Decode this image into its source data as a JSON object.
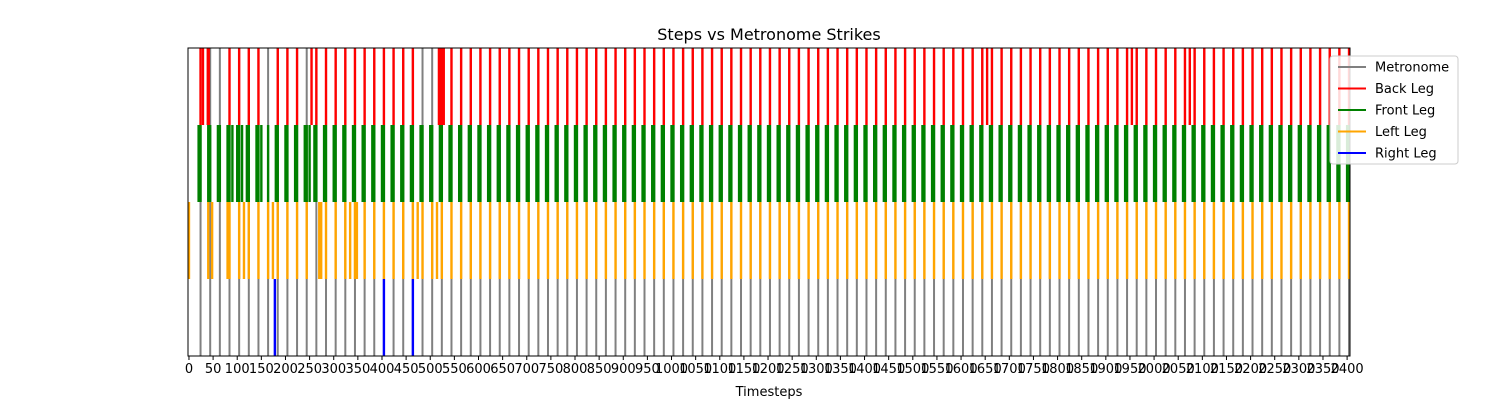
{
  "chart_data": {
    "type": "event-raster",
    "title": "Steps vs Metronome Strikes",
    "xlabel": "Timesteps",
    "ylabel": "",
    "xlim": [
      -2,
      2406
    ],
    "xticks": [
      0,
      50,
      100,
      150,
      200,
      250,
      300,
      350,
      400,
      450,
      500,
      550,
      600,
      650,
      700,
      750,
      800,
      850,
      900,
      950,
      1000,
      1050,
      1100,
      1150,
      1200,
      1250,
      1300,
      1350,
      1400,
      1450,
      1500,
      1550,
      1600,
      1650,
      1700,
      1750,
      1800,
      1850,
      1900,
      1950,
      2000,
      2050,
      2100,
      2150,
      2200,
      2250,
      2300,
      2350,
      2400
    ],
    "grid": false,
    "legend_position": "top-right",
    "series": [
      {
        "name": "Metronome",
        "color": "#808080",
        "row": [
          0,
          4
        ],
        "interval": 20,
        "events": [
          24,
          44,
          64,
          84,
          104,
          124,
          144,
          164,
          184,
          204,
          224,
          244,
          264,
          284,
          304,
          324,
          344,
          364,
          384,
          404,
          424,
          444,
          464,
          484,
          504,
          524,
          544,
          564,
          584,
          604,
          624,
          644,
          664,
          684,
          704,
          724,
          744,
          764,
          784,
          804,
          824,
          844,
          864,
          884,
          904,
          924,
          944,
          964,
          984,
          1004,
          1024,
          1044,
          1064,
          1084,
          1104,
          1124,
          1144,
          1164,
          1184,
          1204,
          1224,
          1244,
          1264,
          1284,
          1304,
          1324,
          1344,
          1364,
          1384,
          1404,
          1424,
          1444,
          1464,
          1484,
          1504,
          1524,
          1544,
          1564,
          1584,
          1604,
          1624,
          1644,
          1664,
          1684,
          1704,
          1724,
          1744,
          1764,
          1784,
          1804,
          1824,
          1844,
          1864,
          1884,
          1904,
          1924,
          1944,
          1964,
          1984,
          2004,
          2024,
          2044,
          2064,
          2084,
          2104,
          2124,
          2144,
          2164,
          2184,
          2204,
          2224,
          2244,
          2264,
          2284,
          2304,
          2324,
          2344,
          2364,
          2384,
          2404
        ]
      },
      {
        "name": "Back Leg",
        "color": "#ff0000",
        "row": [
          3,
          4
        ],
        "events": [
          24,
          29,
          39,
          41,
          84,
          104,
          124,
          144,
          184,
          204,
          224,
          254,
          264,
          284,
          304,
          324,
          344,
          364,
          384,
          404,
          424,
          444,
          464,
          518,
          520,
          522,
          524,
          526,
          528,
          544,
          564,
          584,
          604,
          624,
          644,
          664,
          684,
          704,
          724,
          744,
          764,
          784,
          804,
          824,
          844,
          864,
          884,
          904,
          924,
          944,
          964,
          984,
          1004,
          1024,
          1044,
          1064,
          1084,
          1104,
          1124,
          1144,
          1164,
          1184,
          1204,
          1224,
          1244,
          1264,
          1284,
          1304,
          1324,
          1344,
          1364,
          1384,
          1404,
          1424,
          1444,
          1464,
          1484,
          1504,
          1524,
          1544,
          1564,
          1584,
          1604,
          1624,
          1644,
          1654,
          1664,
          1684,
          1704,
          1724,
          1744,
          1764,
          1784,
          1804,
          1824,
          1844,
          1864,
          1884,
          1904,
          1924,
          1944,
          1954,
          1964,
          1984,
          2004,
          2024,
          2044,
          2064,
          2074,
          2084,
          2104,
          2124,
          2144,
          2164,
          2184,
          2204,
          2224,
          2244,
          2264,
          2284,
          2304,
          2324,
          2344,
          2364,
          2384,
          2404
        ]
      },
      {
        "name": "Front Leg",
        "color": "#008000",
        "row": [
          2,
          3
        ],
        "events": [
          20,
          24,
          40,
          44,
          60,
          64,
          80,
          84,
          90,
          100,
          104,
          110,
          120,
          124,
          140,
          144,
          150,
          164,
          180,
          184,
          200,
          204,
          220,
          224,
          240,
          244,
          250,
          260,
          264,
          280,
          284,
          300,
          304,
          320,
          324,
          340,
          344,
          360,
          364,
          380,
          384,
          400,
          404,
          420,
          424,
          440,
          444,
          460,
          464,
          480,
          484,
          500,
          504,
          520,
          524,
          540,
          544,
          560,
          564,
          580,
          584,
          600,
          604,
          620,
          624,
          640,
          644,
          660,
          664,
          680,
          684,
          700,
          704,
          720,
          724,
          740,
          744,
          760,
          764,
          780,
          784,
          800,
          804,
          820,
          824,
          840,
          844,
          860,
          864,
          880,
          884,
          900,
          904,
          920,
          924,
          940,
          944,
          960,
          964,
          980,
          984,
          1000,
          1004,
          1020,
          1024,
          1040,
          1044,
          1060,
          1064,
          1080,
          1084,
          1100,
          1104,
          1120,
          1124,
          1140,
          1144,
          1160,
          1164,
          1180,
          1184,
          1200,
          1204,
          1220,
          1224,
          1240,
          1244,
          1260,
          1264,
          1280,
          1284,
          1300,
          1304,
          1320,
          1324,
          1340,
          1344,
          1360,
          1364,
          1380,
          1384,
          1400,
          1404,
          1420,
          1424,
          1440,
          1444,
          1460,
          1464,
          1480,
          1484,
          1500,
          1504,
          1520,
          1524,
          1540,
          1544,
          1560,
          1564,
          1580,
          1584,
          1600,
          1604,
          1620,
          1624,
          1640,
          1644,
          1660,
          1664,
          1680,
          1684,
          1700,
          1704,
          1720,
          1724,
          1740,
          1744,
          1760,
          1764,
          1780,
          1784,
          1800,
          1804,
          1820,
          1824,
          1840,
          1844,
          1860,
          1864,
          1880,
          1884,
          1900,
          1904,
          1920,
          1924,
          1940,
          1944,
          1960,
          1964,
          1980,
          1984,
          2000,
          2004,
          2020,
          2024,
          2040,
          2044,
          2060,
          2064,
          2080,
          2084,
          2100,
          2104,
          2120,
          2124,
          2140,
          2144,
          2160,
          2164,
          2180,
          2184,
          2200,
          2204,
          2220,
          2224,
          2240,
          2244,
          2260,
          2264,
          2280,
          2284,
          2300,
          2304,
          2320,
          2324,
          2340,
          2344,
          2360,
          2364,
          2380,
          2384,
          2400,
          2404
        ]
      },
      {
        "name": "Left Leg",
        "color": "#ffa500",
        "row": [
          1,
          2
        ],
        "events": [
          0,
          40,
          48,
          80,
          84,
          104,
          114,
          124,
          144,
          164,
          174,
          184,
          204,
          224,
          244,
          270,
          274,
          284,
          304,
          324,
          334,
          344,
          348,
          364,
          384,
          404,
          424,
          444,
          464,
          474,
          484,
          504,
          514,
          524,
          544,
          564,
          584,
          604,
          624,
          644,
          664,
          684,
          704,
          724,
          744,
          764,
          784,
          804,
          824,
          844,
          864,
          884,
          904,
          924,
          944,
          964,
          984,
          1004,
          1024,
          1044,
          1064,
          1084,
          1104,
          1124,
          1144,
          1164,
          1184,
          1204,
          1224,
          1244,
          1264,
          1284,
          1304,
          1324,
          1344,
          1364,
          1384,
          1404,
          1424,
          1444,
          1464,
          1484,
          1504,
          1524,
          1544,
          1564,
          1584,
          1604,
          1624,
          1644,
          1664,
          1684,
          1704,
          1724,
          1744,
          1764,
          1784,
          1804,
          1824,
          1844,
          1864,
          1884,
          1904,
          1924,
          1944,
          1964,
          1984,
          2004,
          2024,
          2044,
          2064,
          2084,
          2104,
          2124,
          2144,
          2164,
          2184,
          2204,
          2224,
          2244,
          2264,
          2284,
          2304,
          2324,
          2344,
          2364,
          2384,
          2404
        ]
      },
      {
        "name": "Right Leg",
        "color": "#0000ff",
        "row": [
          0,
          1
        ],
        "events": [
          178,
          404,
          464
        ]
      }
    ]
  }
}
